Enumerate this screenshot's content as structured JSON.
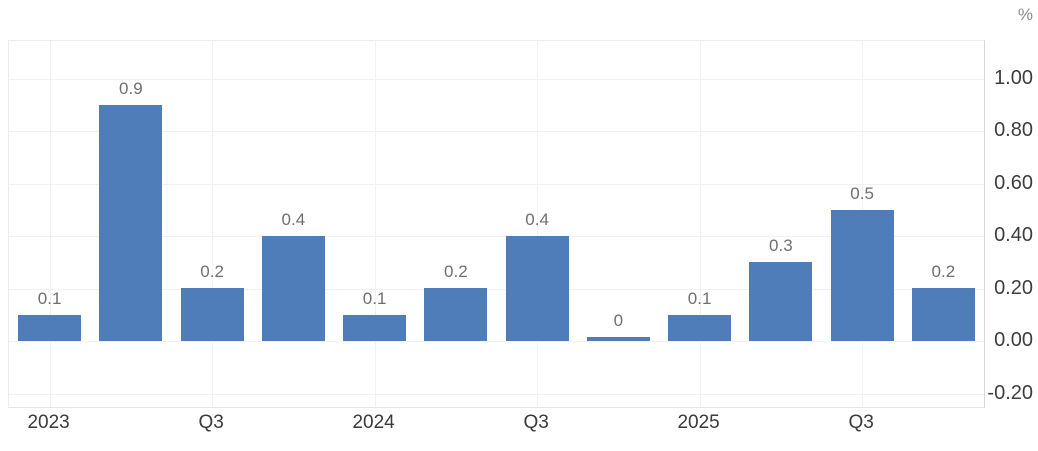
{
  "chart_data": {
    "type": "bar",
    "title": "",
    "xlabel": "",
    "ylabel": "",
    "unit": "%",
    "values": [
      0.1,
      0.9,
      0.2,
      0.4,
      0.1,
      0.2,
      0.4,
      0,
      0.1,
      0.3,
      0.5,
      0.2
    ],
    "bar_value_labels": [
      "0.1",
      "0.9",
      "0.2",
      "0.4",
      "0.1",
      "0.2",
      "0.4",
      "0",
      "0.1",
      "0.3",
      "0.5",
      "0.2"
    ],
    "x_ticks": [
      {
        "bar_index": 0,
        "label": "2023"
      },
      {
        "bar_index": 2,
        "label": "Q3"
      },
      {
        "bar_index": 4,
        "label": "2024"
      },
      {
        "bar_index": 6,
        "label": "Q3"
      },
      {
        "bar_index": 8,
        "label": "2025"
      },
      {
        "bar_index": 10,
        "label": "Q3"
      }
    ],
    "y_ticks": [
      {
        "value": 1.0,
        "label": "1.00"
      },
      {
        "value": 0.8,
        "label": "0.80"
      },
      {
        "value": 0.6,
        "label": "0.60"
      },
      {
        "value": 0.4,
        "label": "0.40"
      },
      {
        "value": 0.2,
        "label": "0.20"
      },
      {
        "value": 0.0,
        "label": "0.00"
      },
      {
        "value": -0.2,
        "label": "-0.20"
      }
    ],
    "ylim": [
      -0.25,
      1.14
    ],
    "grid": true,
    "legend": "none",
    "y_axis_position": "right",
    "colors": {
      "bar": "#4e7db9",
      "axis_label": "#3d3d3d",
      "bar_value_label": "#6f6f6f",
      "unit_label": "#8a8a8a",
      "gridline": "#f1f1f1",
      "background": "#ffffff"
    }
  }
}
